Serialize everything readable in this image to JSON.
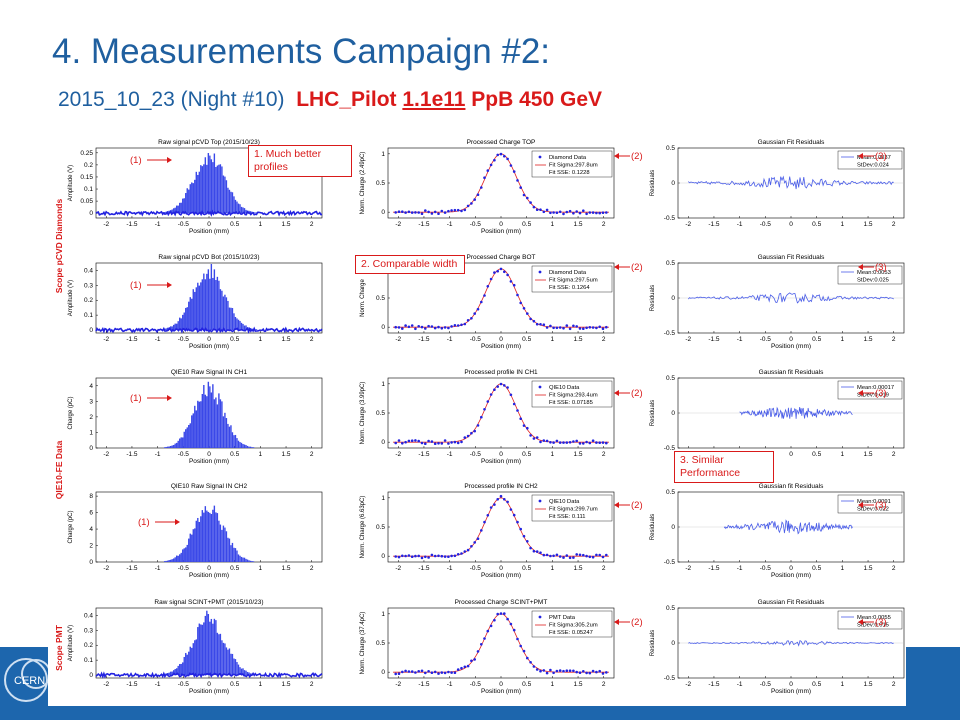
{
  "slide": {
    "title": "4. Measurements Campaign #2:",
    "subtitle_blue": "2015_10_23 (Night #10)",
    "subtitle_red_1": "LHC_Pilot",
    "subtitle_red_2": "1.1e11",
    "subtitle_red_3": "PpB  450 GeV",
    "logo_text": "CERN"
  },
  "callouts": {
    "c1": "1. Much better profiles",
    "c2": "2. Comparable width",
    "c3": "3. Similar Performance"
  },
  "markers": {
    "raw": "(1)",
    "processed": "(2)",
    "residuals": "(3)"
  },
  "row_labels": [
    {
      "text": "Scope pCVD Diamonds",
      "color": "#d91a1a"
    },
    {
      "text": "QIE10-FE Data",
      "color": "#d91a1a"
    },
    {
      "text": "Scope PMT",
      "color": "#d91a1a"
    }
  ],
  "colors": {
    "marker": "#2323e0",
    "fit": "#e02020",
    "hist": "#3a48e8",
    "resid": "#4b5ee8"
  },
  "chart_data": [
    {
      "type": "bar",
      "title": "Raw signal pCVD Top (2015/10/23)",
      "xlabel": "Position (mm)",
      "ylabel": "Amplitude (V)",
      "xlim": [
        -2.2,
        2.2
      ],
      "ylim": [
        -0.02,
        0.27
      ],
      "yticks": [
        0,
        0.05,
        0.1,
        0.15,
        0.2,
        0.25
      ],
      "xticks": [
        -2,
        -1.5,
        -1,
        -0.5,
        0,
        0.5,
        1,
        1.5,
        2
      ],
      "peak": 0.24,
      "sigma": 0.31,
      "center": 0,
      "noise": true
    },
    {
      "type": "scatter",
      "title": "Processed Charge TOP",
      "xlabel": "Position (mm)",
      "ylabel": "Norm. Charge (2.49pC)",
      "xlim": [
        -2.2,
        2.2
      ],
      "ylim": [
        -0.1,
        1.1
      ],
      "yticks": [
        0,
        0.5,
        1
      ],
      "xticks": [
        -2,
        -1.5,
        -1,
        -0.5,
        0,
        0.5,
        1,
        1.5,
        2
      ],
      "sigma": 0.298,
      "legend": [
        "Diamond Data",
        "Fit Sigma:297.8um",
        "Fit SSE: 0.1228"
      ]
    },
    {
      "type": "line",
      "title": "Gaussian Fit Residuals",
      "xlabel": "",
      "ylabel": "Residuals",
      "xlim": [
        -2.2,
        2.2
      ],
      "ylim": [
        -0.5,
        0.5
      ],
      "yticks": [
        -0.5,
        0,
        0.5
      ],
      "xticks": [
        -2,
        -1.5,
        -1,
        -0.5,
        0,
        0.5,
        1,
        1.5,
        2
      ],
      "amp": 0.08,
      "xspan": [
        -2,
        2
      ],
      "legend": [
        "Mean:0.0037",
        "StDev:0.024"
      ]
    },
    {
      "type": "bar",
      "title": "Raw signal pCVD Bot (2015/10/23)",
      "xlabel": "Position (mm)",
      "ylabel": "Amplitude (V)",
      "xlim": [
        -2.2,
        2.2
      ],
      "ylim": [
        -0.02,
        0.45
      ],
      "yticks": [
        0,
        0.1,
        0.2,
        0.3,
        0.4
      ],
      "xticks": [
        -2,
        -1.5,
        -1,
        -0.5,
        0,
        0.5,
        1,
        1.5,
        2
      ],
      "peak": 0.41,
      "sigma": 0.31,
      "center": 0,
      "noise": true
    },
    {
      "type": "scatter",
      "title": "Processed Charge BOT",
      "xlabel": "Position (mm)",
      "ylabel": "Norm. Charge",
      "xlim": [
        -2.2,
        2.2
      ],
      "ylim": [
        -0.1,
        1.1
      ],
      "yticks": [
        0,
        0.5,
        1
      ],
      "xticks": [
        -2,
        -1.5,
        -1,
        -0.5,
        0,
        0.5,
        1,
        1.5,
        2
      ],
      "sigma": 0.298,
      "legend": [
        "Diamond Data",
        "Fit Sigma:297.5um",
        "Fit SSE: 0.1264"
      ]
    },
    {
      "type": "line",
      "title": "Gaussian Fit Residuals",
      "xlabel": "Position (mm)",
      "ylabel": "Residuals",
      "xlim": [
        -2.2,
        2.2
      ],
      "ylim": [
        -0.5,
        0.5
      ],
      "yticks": [
        -0.5,
        0,
        0.5
      ],
      "xticks": [
        -2,
        -1.5,
        -1,
        -0.5,
        0,
        0.5,
        1,
        1.5,
        2
      ],
      "amp": 0.06,
      "xspan": [
        -2,
        2
      ],
      "legend": [
        "Mean:0.0053",
        "StDev:0.025"
      ]
    },
    {
      "type": "bar",
      "title": "QIE10 Raw Signal IN CH1",
      "xlabel": "Position (mm)",
      "ylabel": "Charge (pC)",
      "xlim": [
        -2.2,
        2.2
      ],
      "ylim": [
        0,
        4.5
      ],
      "yticks": [
        0,
        1,
        2,
        3,
        4
      ],
      "xticks": [
        -2,
        -1.5,
        -1,
        -0.5,
        0,
        0.5,
        1,
        1.5,
        2
      ],
      "peak": 3.9,
      "sigma": 0.29,
      "center": 0,
      "noise": false
    },
    {
      "type": "scatter",
      "title": "Processed profile IN CH1",
      "xlabel": "Position (mm)",
      "ylabel": "Norm. Charge (3.99pC)",
      "xlim": [
        -2.2,
        2.2
      ],
      "ylim": [
        -0.1,
        1.1
      ],
      "yticks": [
        0,
        0.5,
        1
      ],
      "xticks": [
        -2,
        -1.5,
        -1,
        -0.5,
        0,
        0.5,
        1,
        1.5,
        2
      ],
      "sigma": 0.293,
      "legend": [
        "QIE10 Data",
        "Fit Sigma:293.4um",
        "Fit SSE: 0.07185"
      ]
    },
    {
      "type": "line",
      "title": "Gaussian fit Residuals",
      "xlabel": "",
      "ylabel": "Residuals",
      "xlim": [
        -2.2,
        2.2
      ],
      "ylim": [
        -0.5,
        0.5
      ],
      "yticks": [
        -0.5,
        0,
        0.5
      ],
      "xticks": [
        -2,
        -1.5,
        -1,
        -0.5,
        0,
        0.5,
        1,
        1.5,
        2
      ],
      "amp": 0.07,
      "xspan": [
        -1,
        1.2
      ],
      "legend": [
        "Mean:0.00017",
        "StDev:0.019"
      ]
    },
    {
      "type": "bar",
      "title": "QIE10 Raw Signal IN CH2",
      "xlabel": "Position (mm)",
      "ylabel": "Charge (pC)",
      "xlim": [
        -2.2,
        2.2
      ],
      "ylim": [
        0,
        8.5
      ],
      "yticks": [
        0,
        2,
        4,
        6,
        8
      ],
      "xticks": [
        -2,
        -1.5,
        -1,
        -0.5,
        0,
        0.5,
        1,
        1.5,
        2
      ],
      "peak": 6.6,
      "sigma": 0.3,
      "center": 0,
      "noise": false
    },
    {
      "type": "scatter",
      "title": "Processed profile IN CH2",
      "xlabel": "Position (mm)",
      "ylabel": "Norm. Charge (6.63pC)",
      "xlim": [
        -2.2,
        2.2
      ],
      "ylim": [
        -0.1,
        1.1
      ],
      "yticks": [
        0,
        0.5,
        1
      ],
      "xticks": [
        -2,
        -1.5,
        -1,
        -0.5,
        0,
        0.5,
        1,
        1.5,
        2
      ],
      "sigma": 0.3,
      "legend": [
        "QIE10 Data",
        "Fit Sigma:299.7um",
        "Fit SSE: 0.111"
      ]
    },
    {
      "type": "line",
      "title": "Gaussian fit Residuals",
      "xlabel": "Position (mm)",
      "ylabel": "Residuals",
      "xlim": [
        -2.2,
        2.2
      ],
      "ylim": [
        -0.5,
        0.5
      ],
      "yticks": [
        -0.5,
        0,
        0.5
      ],
      "xticks": [
        -2,
        -1.5,
        -1,
        -0.5,
        0,
        0.5,
        1,
        1.5,
        2
      ],
      "amp": 0.08,
      "xspan": [
        -1.3,
        1.2
      ],
      "legend": [
        "Mean:0.0091",
        "StDev:0.022"
      ]
    },
    {
      "type": "bar",
      "title": "Raw signal SCINT+PMT (2015/10/23)",
      "xlabel": "Position (mm)",
      "ylabel": "Amplitude (V)",
      "xlim": [
        -2.2,
        2.2
      ],
      "ylim": [
        -0.02,
        0.45
      ],
      "yticks": [
        0,
        0.1,
        0.2,
        0.3,
        0.4
      ],
      "xticks": [
        -2,
        -1.5,
        -1,
        -0.5,
        0,
        0.5,
        1,
        1.5,
        2
      ],
      "peak": 0.39,
      "sigma": 0.31,
      "center": 0,
      "noise": true
    },
    {
      "type": "scatter",
      "title": "Processed Charge SCINT+PMT",
      "xlabel": "Position (mm)",
      "ylabel": "Norm. Charge (37.4pC)",
      "xlim": [
        -2.2,
        2.2
      ],
      "ylim": [
        -0.1,
        1.1
      ],
      "yticks": [
        0,
        0.5,
        1
      ],
      "xticks": [
        -2,
        -1.5,
        -1,
        -0.5,
        0,
        0.5,
        1,
        1.5,
        2
      ],
      "sigma": 0.305,
      "legend": [
        "PMT Data",
        "Fit Sigma:305.2um",
        "Fit SSE: 0.05247"
      ]
    },
    {
      "type": "line",
      "title": "Gaussian Fit Residuals",
      "xlabel": "Position (mm)",
      "ylabel": "Residuals",
      "xlim": [
        -2.2,
        2.2
      ],
      "ylim": [
        -0.5,
        0.5
      ],
      "yticks": [
        -0.5,
        0,
        0.5
      ],
      "xticks": [
        -2,
        -1.5,
        -1,
        -0.5,
        0,
        0.5,
        1,
        1.5,
        2
      ],
      "amp": 0.03,
      "xspan": [
        -2,
        2
      ],
      "legend": [
        "Mean:0.0055",
        "StDev:0.015"
      ]
    }
  ]
}
